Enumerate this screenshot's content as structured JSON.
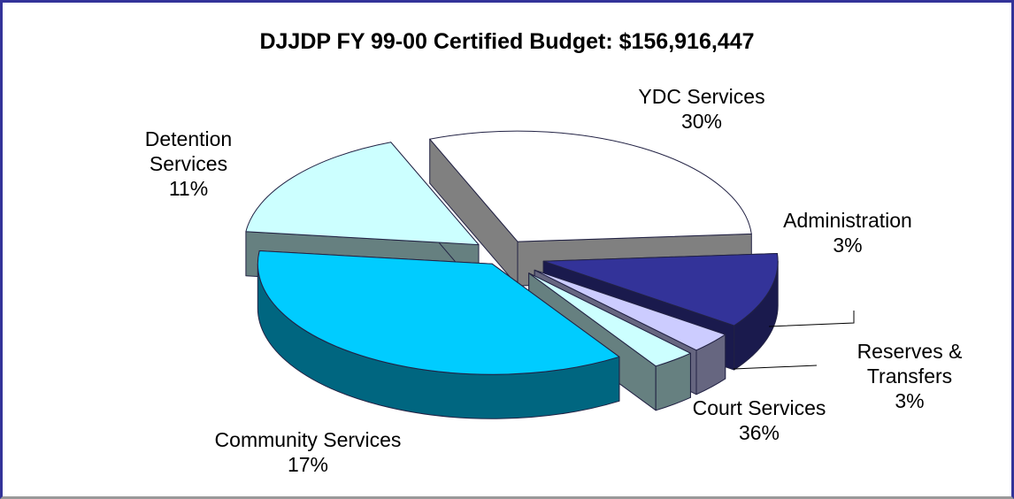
{
  "chart_data": {
    "type": "pie",
    "title": "DJJDP FY 99-00 Certified Budget: $156,916,447",
    "categories": [
      "YDC Services",
      "Detention Services",
      "Administration",
      "Reserves & Transfers",
      "Court Services",
      "Community Services"
    ],
    "values": [
      30,
      11,
      3,
      3,
      36,
      17
    ],
    "value_labels": [
      "30%",
      "11%",
      "3%",
      "3%",
      "36%",
      "17%"
    ],
    "colors": [
      "#ffffff",
      "#333399",
      "#ccccff",
      "#ccffff",
      "#00ccff",
      "#ccffff"
    ]
  }
}
